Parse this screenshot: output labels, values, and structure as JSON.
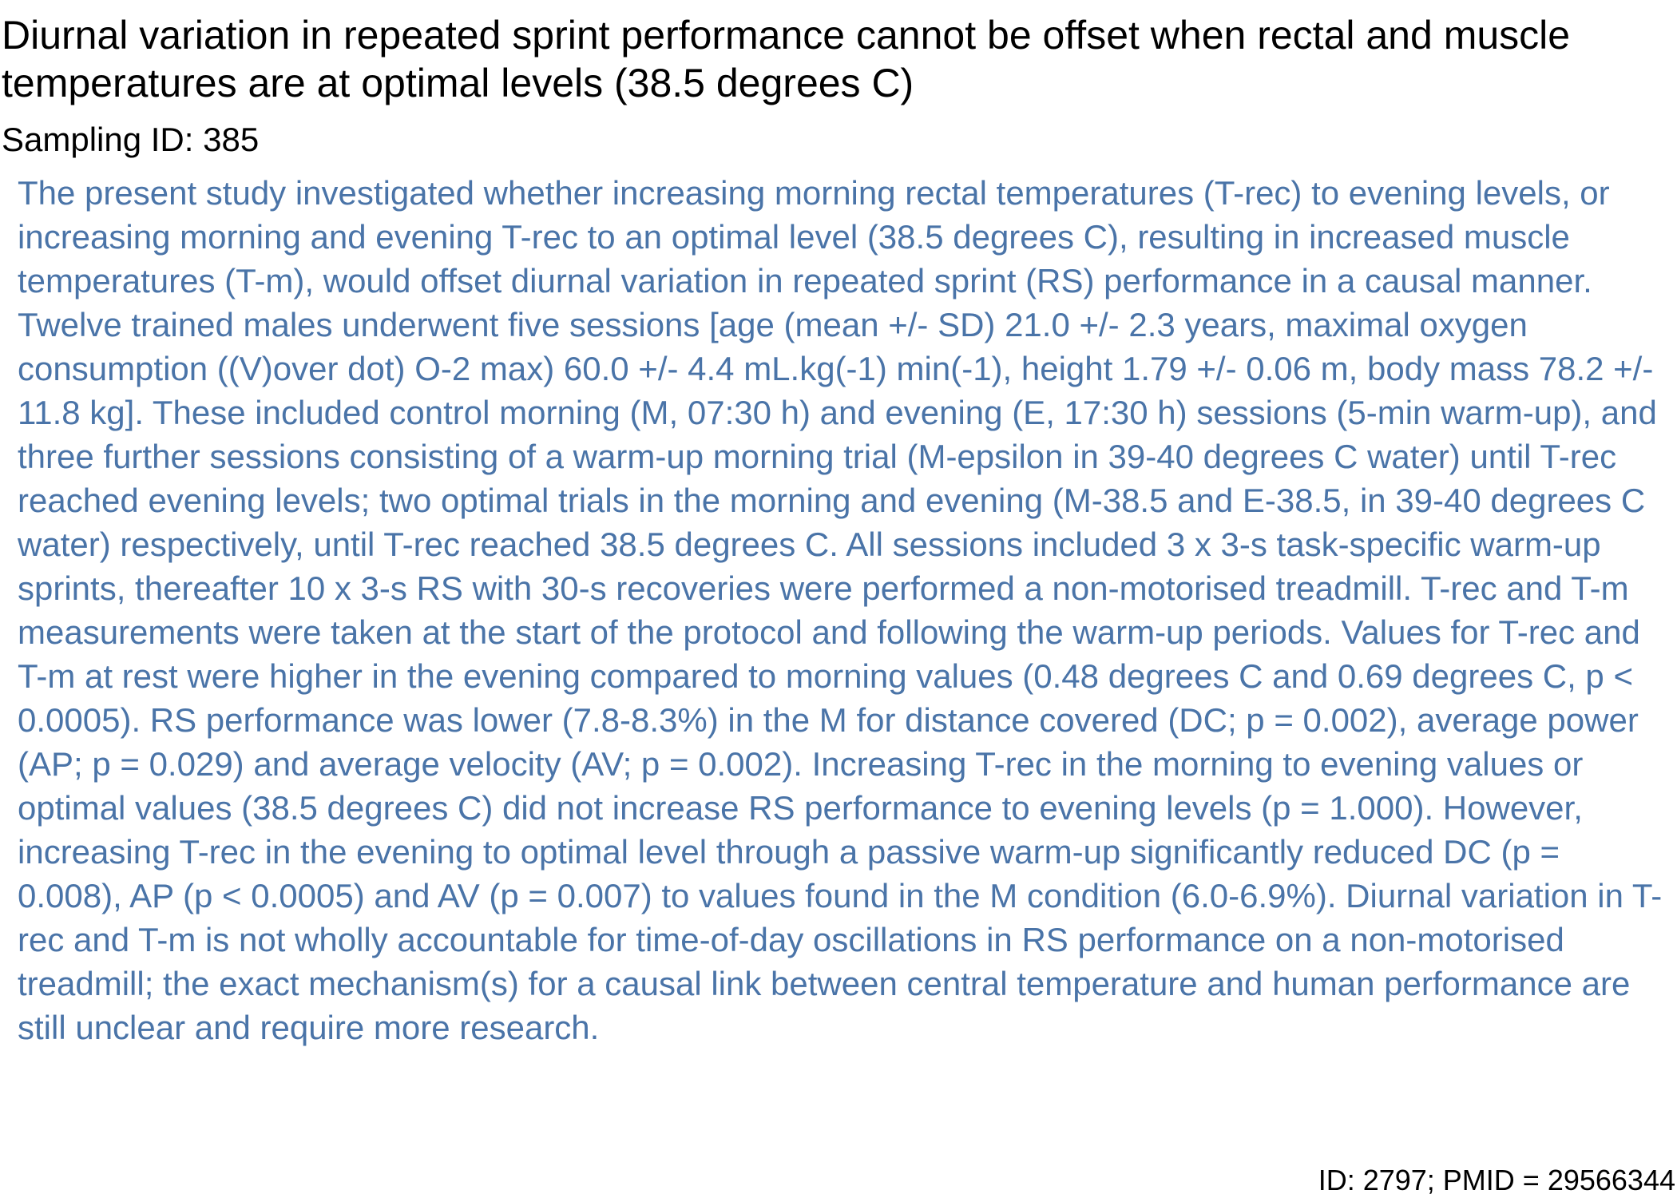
{
  "document": {
    "title": "Diurnal variation in repeated sprint performance cannot be offset when rectal and muscle temperatures are at optimal levels (38.5 degrees C)",
    "sampling_label": "Sampling ID: 385",
    "abstract": "The present study investigated whether increasing morning rectal temperatures (T-rec) to evening levels, or increasing morning and evening T-rec to an optimal level (38.5 degrees C), resulting in increased muscle temperatures (T-m), would offset diurnal variation in repeated sprint (RS) performance in a causal manner. Twelve trained males underwent five sessions [age (mean +/- SD) 21.0 +/- 2.3 years, maximal oxygen consumption ((V)over dot) O-2 max) 60.0 +/- 4.4 mL.kg(-1) min(-1), height 1.79 +/- 0.06 m, body mass 78.2 +/- 11.8 kg]. These included control morning (M, 07:30 h) and evening (E, 17:30 h) sessions (5-min warm-up), and three further sessions consisting of a warm-up morning trial (M-epsilon in 39-40 degrees C water) until T-rec reached evening levels; two optimal trials in the morning and evening (M-38.5 and E-38.5, in 39-40 degrees C water) respectively, until T-rec reached 38.5 degrees C. All sessions included 3 x 3-s task-specific warm-up sprints, thereafter 10 x 3-s RS with 30-s recoveries were performed a non-motorised treadmill. T-rec and T-m measurements were taken at the start of the protocol and following the warm-up periods. Values for T-rec and T-m at rest were higher in the evening compared to morning values (0.48 degrees C and 0.69 degrees C, p < 0.0005). RS performance was lower (7.8-8.3%) in the M for distance covered (DC; p = 0.002), average power (AP; p = 0.029) and average velocity (AV; p = 0.002). Increasing T-rec in the morning to evening values or optimal values (38.5 degrees C) did not increase RS performance to evening levels (p = 1.000). However, increasing T-rec in the evening to optimal level through a passive warm-up significantly reduced DC (p = 0.008), AP (p < 0.0005) and AV (p = 0.007) to values found in the M condition (6.0-6.9%). Diurnal variation in T-rec and T-m is not wholly accountable for time-of-day oscillations in RS performance on a non-motorised treadmill; the exact mechanism(s) for a causal link between central temperature and human performance are still unclear and require more research.",
    "footer_id": "ID: 2797; PMID = 29566344"
  },
  "colors": {
    "title_text": "#000000",
    "abstract_text": "#4a74a8",
    "background": "#ffffff"
  }
}
